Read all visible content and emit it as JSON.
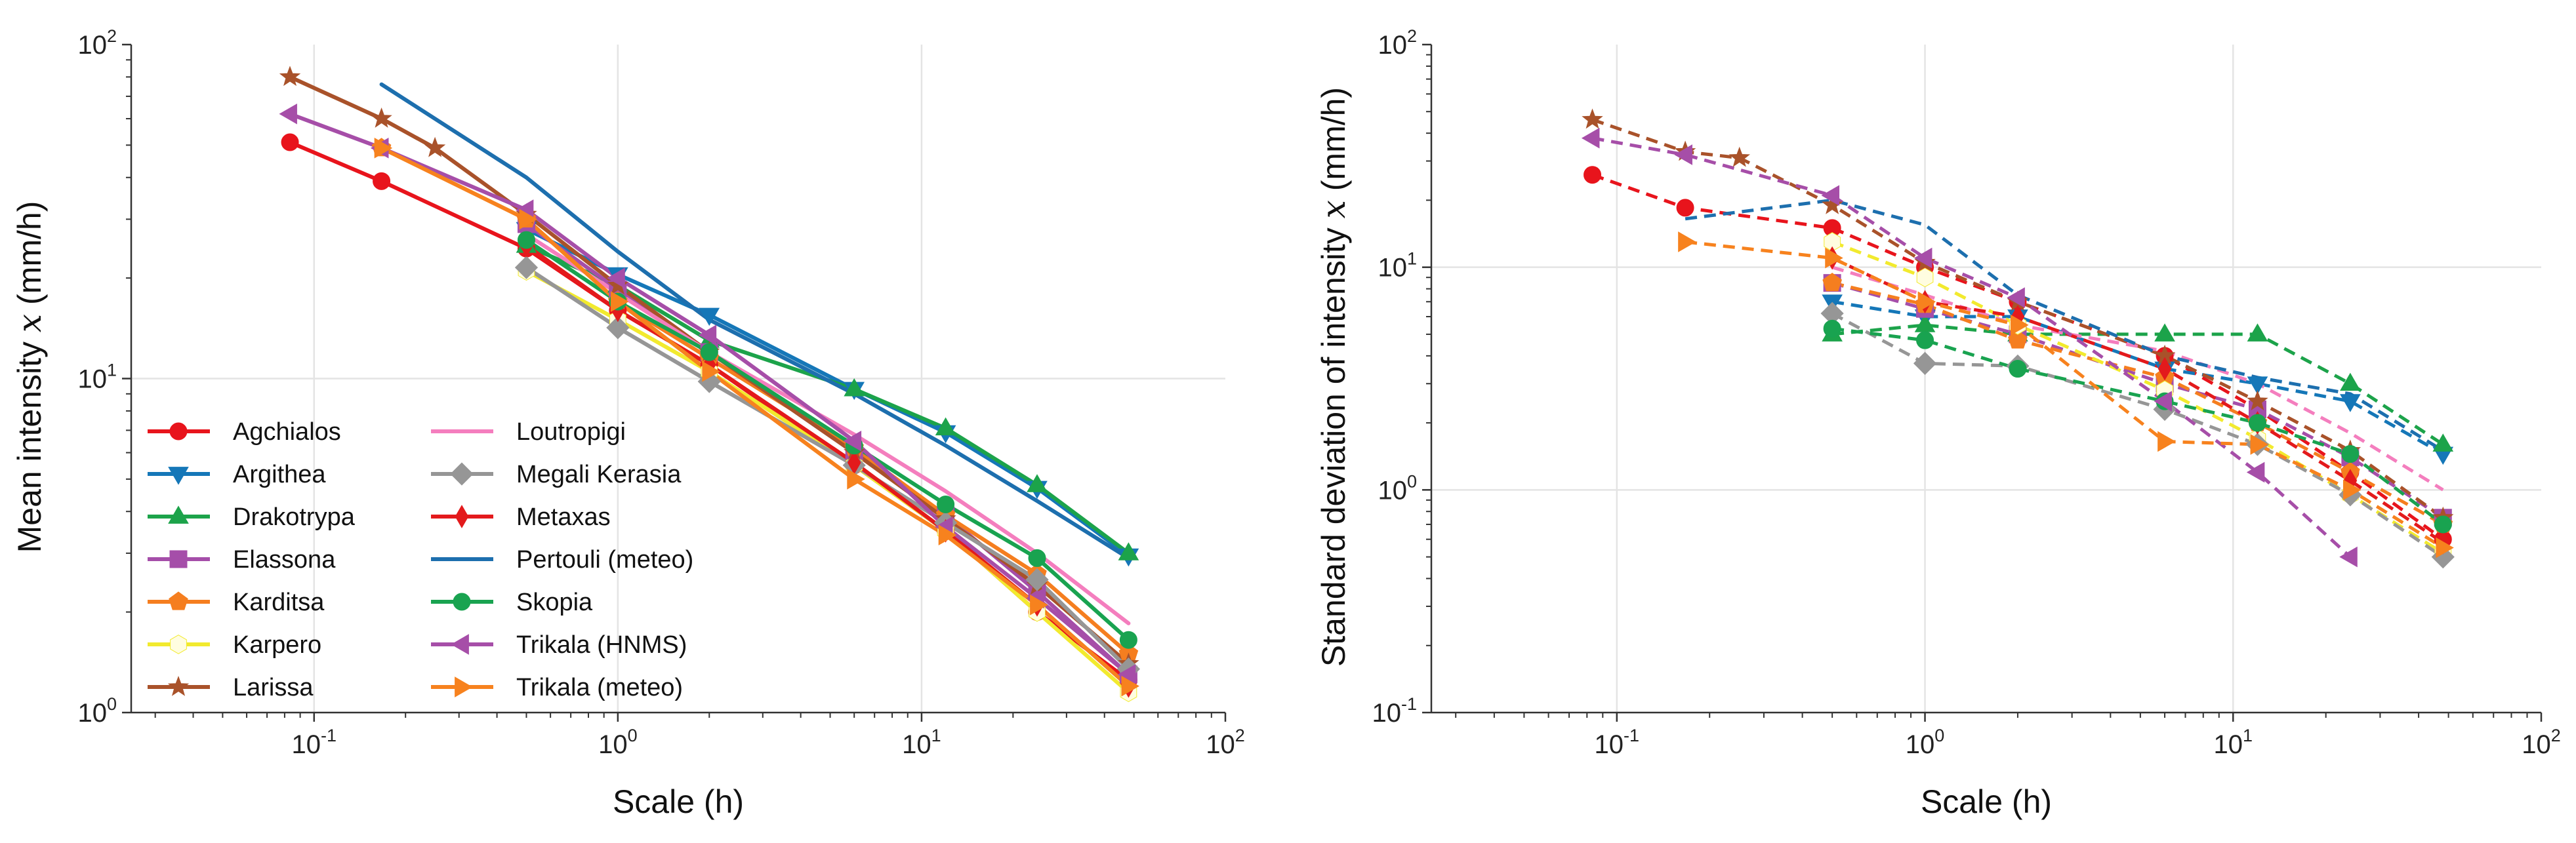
{
  "legend": [
    "Agchialos",
    "Argithea",
    "Drakotrypa",
    "Elassona",
    "Karditsa",
    "Karpero",
    "Larissa",
    "Loutropigi",
    "Megali Kerasia",
    "Metaxas",
    "Pertouli (meteo)",
    "Skopia",
    "Trikala (HNMS)",
    "Trikala (meteo)"
  ],
  "styles": [
    {
      "color": "#e8141c",
      "marker": "circle"
    },
    {
      "color": "#1577b8",
      "marker": "triangle-down"
    },
    {
      "color": "#1ca34a",
      "marker": "triangle-up"
    },
    {
      "color": "#a54ea9",
      "marker": "square"
    },
    {
      "color": "#f57e1f",
      "marker": "pentagon"
    },
    {
      "color": "#f2ea2e",
      "marker": "hexagon"
    },
    {
      "color": "#a9522a",
      "marker": "star"
    },
    {
      "color": "#f47ebe",
      "marker": "none"
    },
    {
      "color": "#969696",
      "marker": "diamond"
    },
    {
      "color": "#e31a1c",
      "marker": "thin-diamond"
    },
    {
      "color": "#1d6fae",
      "marker": "none"
    },
    {
      "color": "#19a350",
      "marker": "circle"
    },
    {
      "color": "#a64ea8",
      "marker": "triangle-left"
    },
    {
      "color": "#f7821e",
      "marker": "triangle-right"
    }
  ],
  "chart_data": [
    {
      "type": "line",
      "xscale": "log",
      "yscale": "log",
      "xlim": [
        0.025,
        100
      ],
      "ylim": [
        1,
        100
      ],
      "xlabel_text": "Scale  (h)",
      "ylabel_text": "Mean intensity",
      "ylabel_symbol": "x",
      "ylabel_unit": "(mm/h)",
      "xticks": [
        {
          "base": "10",
          "exp": "-1"
        },
        {
          "base": "10",
          "exp": "0"
        },
        {
          "base": "10",
          "exp": "1"
        },
        {
          "base": "10",
          "exp": "2"
        }
      ],
      "yticks": [
        {
          "base": "10",
          "exp": "0"
        },
        {
          "base": "10",
          "exp": "1"
        },
        {
          "base": "10",
          "exp": "2"
        }
      ],
      "xtick_values": [
        0.1,
        1,
        10,
        100
      ],
      "ytick_values": [
        1,
        10,
        100
      ],
      "legend_location": "lower-left",
      "dashed": false,
      "series": [
        {
          "name": "Agchialos",
          "x": [
            0.0833,
            0.1667,
            0.5,
            1,
            2,
            6,
            12,
            24,
            48
          ],
          "y": [
            51,
            39,
            24.5,
            16,
            11,
            5.5,
            3.5,
            2.0,
            1.25
          ]
        },
        {
          "name": "Argithea",
          "x": [
            0.5,
            1,
            2,
            6,
            12,
            24,
            48
          ],
          "y": [
            28,
            20.5,
            15.5,
            9.3,
            6.9,
            4.7,
            2.95
          ]
        },
        {
          "name": "Drakotrypa",
          "x": [
            0.5,
            1,
            2,
            6,
            12,
            24,
            48
          ],
          "y": [
            25,
            19,
            13,
            9.3,
            7.1,
            4.8,
            3.0
          ]
        },
        {
          "name": "Elassona",
          "x": [
            0.5,
            1,
            2,
            6,
            12,
            24,
            48
          ],
          "y": [
            29,
            18.5,
            12,
            6,
            3.9,
            2.3,
            1.3
          ]
        },
        {
          "name": "Karditsa",
          "x": [
            0.1667,
            0.5,
            1,
            2,
            6,
            12,
            24,
            48
          ],
          "y": [
            49,
            30,
            17,
            11.5,
            6.2,
            3.9,
            2.6,
            1.5
          ]
        },
        {
          "name": "Karpero",
          "x": [
            0.5,
            1,
            2,
            6,
            12,
            24,
            48
          ],
          "y": [
            21,
            15,
            10.5,
            5.5,
            3.5,
            2.0,
            1.15
          ]
        },
        {
          "name": "Larissa",
          "x": [
            0.0833,
            0.1667,
            0.25,
            0.5,
            1,
            2,
            6,
            12,
            24,
            48
          ],
          "y": [
            80,
            60,
            49,
            31,
            19,
            12,
            6,
            3.8,
            2.4,
            1.4
          ]
        },
        {
          "name": "Loutropigi",
          "x": [
            0.5,
            1,
            2,
            6,
            12,
            24,
            48
          ],
          "y": [
            27,
            18,
            12,
            6.8,
            4.6,
            3.0,
            1.85
          ]
        },
        {
          "name": "Megali Kerasia",
          "x": [
            0.5,
            1,
            2,
            6,
            12,
            24,
            48
          ],
          "y": [
            21.5,
            14.2,
            9.8,
            5.5,
            3.7,
            2.5,
            1.35
          ]
        },
        {
          "name": "Metaxas",
          "x": [
            0.5,
            1,
            2,
            6,
            12,
            24,
            48
          ],
          "y": [
            25,
            16,
            11,
            5.6,
            3.5,
            2.1,
            1.2
          ]
        },
        {
          "name": "Pertouli (meteo)",
          "x": [
            0.1667,
            0.5,
            1,
            2,
            6,
            12,
            24,
            48
          ],
          "y": [
            76,
            40,
            24,
            15,
            9,
            6.3,
            4.3,
            2.9
          ]
        },
        {
          "name": "Skopia",
          "x": [
            0.5,
            1,
            2,
            6,
            12,
            24,
            48
          ],
          "y": [
            26,
            17,
            12,
            6.3,
            4.2,
            2.9,
            1.65
          ]
        },
        {
          "name": "Trikala (HNMS)",
          "x": [
            0.0833,
            0.1667,
            0.5,
            1,
            2,
            6,
            12,
            24,
            48
          ],
          "y": [
            62,
            49,
            32,
            20,
            13.5,
            6.5,
            3.6,
            2.2,
            1.3
          ]
        },
        {
          "name": "Trikala (meteo)",
          "x": [
            0.1667,
            0.5,
            1,
            2,
            6,
            12,
            24,
            48
          ],
          "y": [
            49,
            30,
            17,
            10.5,
            5,
            3.4,
            2.1,
            1.2
          ]
        }
      ]
    },
    {
      "type": "line",
      "xscale": "log",
      "yscale": "log",
      "xlim": [
        0.025,
        100
      ],
      "ylim": [
        0.1,
        100
      ],
      "xlabel_text": "Scale  (h)",
      "ylabel_text": "Standard deviation of intensity",
      "ylabel_symbol": "x",
      "ylabel_unit": "(mm/h)",
      "xticks": [
        {
          "base": "10",
          "exp": "-1"
        },
        {
          "base": "10",
          "exp": "0"
        },
        {
          "base": "10",
          "exp": "1"
        },
        {
          "base": "10",
          "exp": "2"
        }
      ],
      "yticks": [
        {
          "base": "10",
          "exp": "-1"
        },
        {
          "base": "10",
          "exp": "0"
        },
        {
          "base": "10",
          "exp": "1"
        },
        {
          "base": "10",
          "exp": "2"
        }
      ],
      "xtick_values": [
        0.1,
        1,
        10,
        100
      ],
      "ytick_values": [
        0.1,
        1,
        10,
        100
      ],
      "dashed": true,
      "series": [
        {
          "name": "Agchialos",
          "x": [
            0.0833,
            0.1667,
            0.5,
            1,
            2,
            6,
            12,
            24,
            48
          ],
          "y": [
            26,
            18.5,
            15,
            10,
            7,
            4,
            2.3,
            1.2,
            0.6
          ]
        },
        {
          "name": "Argithea",
          "x": [
            0.5,
            1,
            2,
            6,
            12,
            24,
            48
          ],
          "y": [
            7,
            6,
            6,
            3.5,
            3,
            2.5,
            1.45
          ]
        },
        {
          "name": "Drakotrypa",
          "x": [
            0.5,
            1,
            2,
            6,
            12,
            24,
            48
          ],
          "y": [
            5,
            5.5,
            5,
            5,
            5,
            3,
            1.6
          ]
        },
        {
          "name": "Elassona",
          "x": [
            0.5,
            1,
            2,
            6,
            12,
            24,
            48
          ],
          "y": [
            8.5,
            6.5,
            5,
            3,
            2.3,
            1.4,
            0.75
          ]
        },
        {
          "name": "Karditsa",
          "x": [
            0.5,
            1,
            2,
            6,
            12,
            24,
            48
          ],
          "y": [
            8.5,
            6.8,
            4.7,
            3.2,
            2,
            1.2,
            0.7
          ]
        },
        {
          "name": "Karpero",
          "x": [
            0.5,
            1,
            2,
            6,
            12,
            24,
            48
          ],
          "y": [
            13,
            9,
            5.5,
            2.8,
            1.7,
            0.95,
            0.52
          ]
        },
        {
          "name": "Larissa",
          "x": [
            0.0833,
            0.1667,
            0.25,
            0.5,
            1,
            2,
            6,
            12,
            24,
            48
          ],
          "y": [
            46,
            33,
            31,
            19,
            10.5,
            7,
            4,
            2.5,
            1.5,
            0.75
          ]
        },
        {
          "name": "Loutropigi",
          "x": [
            0.5,
            1,
            2,
            6,
            12,
            24,
            48
          ],
          "y": [
            10,
            7.5,
            5.5,
            4.2,
            3,
            1.8,
            1.0
          ]
        },
        {
          "name": "Megali Kerasia",
          "x": [
            0.5,
            1,
            2,
            6,
            12,
            24,
            48
          ],
          "y": [
            6.2,
            3.7,
            3.6,
            2.3,
            1.6,
            0.95,
            0.5
          ]
        },
        {
          "name": "Metaxas",
          "x": [
            0.5,
            1,
            2,
            6,
            12,
            24,
            48
          ],
          "y": [
            11,
            7,
            6,
            3.5,
            2,
            1.1,
            0.58
          ]
        },
        {
          "name": "Pertouli (meteo)",
          "x": [
            0.1667,
            0.5,
            1,
            2,
            6,
            12,
            24,
            48
          ],
          "y": [
            16.5,
            20,
            15.5,
            7.5,
            4,
            3.2,
            2.7,
            1.5
          ]
        },
        {
          "name": "Skopia",
          "x": [
            0.5,
            1,
            2,
            6,
            12,
            24,
            48
          ],
          "y": [
            5.3,
            4.7,
            3.5,
            2.5,
            2,
            1.45,
            0.7
          ]
        },
        {
          "name": "Trikala (HNMS)",
          "x": [
            0.0833,
            0.1667,
            0.5,
            1,
            2,
            6,
            12,
            24
          ],
          "y": [
            38,
            32,
            21,
            11,
            7.3,
            2.5,
            1.2,
            0.5
          ]
        },
        {
          "name": "Trikala (meteo)",
          "x": [
            0.1667,
            0.5,
            1,
            2,
            6,
            12,
            24,
            48
          ],
          "y": [
            13,
            11,
            7,
            5.5,
            1.65,
            1.6,
            1.0,
            0.55
          ]
        }
      ]
    }
  ]
}
